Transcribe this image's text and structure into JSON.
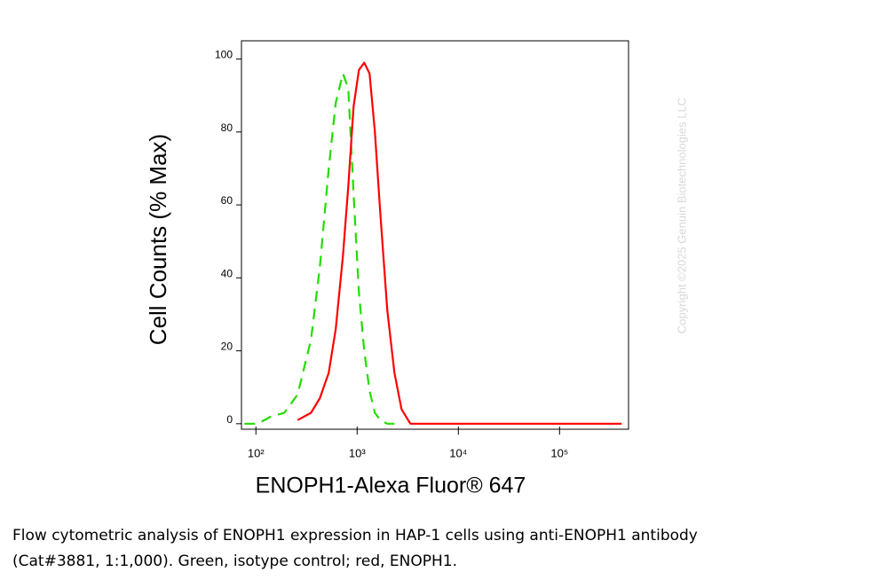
{
  "chart_data": {
    "type": "line",
    "x_label": "ENOPH1-Alexa Fluor® 647",
    "y_label": "Cell Counts (% Max)",
    "watermark": "Copyright ©2025 Genuin Biotechnologies LLC",
    "x_log": true,
    "xlim": [
      72,
      480000
    ],
    "xticks": [
      {
        "value": 100,
        "label": "10²"
      },
      {
        "value": 1000,
        "label": "10³"
      },
      {
        "value": 10000,
        "label": "10⁴"
      },
      {
        "value": 100000,
        "label": "10⁵"
      }
    ],
    "ylim": [
      -1.5,
      105
    ],
    "yticks": [
      0,
      20,
      40,
      60,
      80,
      100
    ],
    "x": [
      77,
      104,
      141,
      191,
      258,
      350,
      428,
      524,
      615,
      724,
      817,
      922,
      1042,
      1175,
      1327,
      1497,
      1690,
      1986,
      2334,
      2746,
      3358,
      4831,
      10840,
      54550,
      411000
    ],
    "series": [
      {
        "color": "#22dd00",
        "dashed": true,
        "values": [
          0,
          0,
          2,
          3,
          8,
          23,
          43,
          70,
          88,
          96,
          92,
          63,
          36,
          20,
          9,
          3,
          1,
          0,
          0,
          null,
          null,
          null,
          null,
          null,
          null
        ]
      },
      {
        "color": "#ff0000",
        "dashed": false,
        "values": [
          null,
          null,
          null,
          null,
          1,
          3,
          7,
          14,
          26,
          46,
          65,
          87,
          97,
          99,
          96,
          80,
          58,
          31,
          14,
          4,
          0,
          0,
          0,
          0,
          0
        ]
      }
    ],
    "caption": [
      "Flow cytometric analysis of ENOPH1 expression in HAP-1 cells using anti-ENOPH1 antibody",
      "(Cat#3881, 1:1,000). Green, isotype control; red, ENOPH1."
    ]
  }
}
